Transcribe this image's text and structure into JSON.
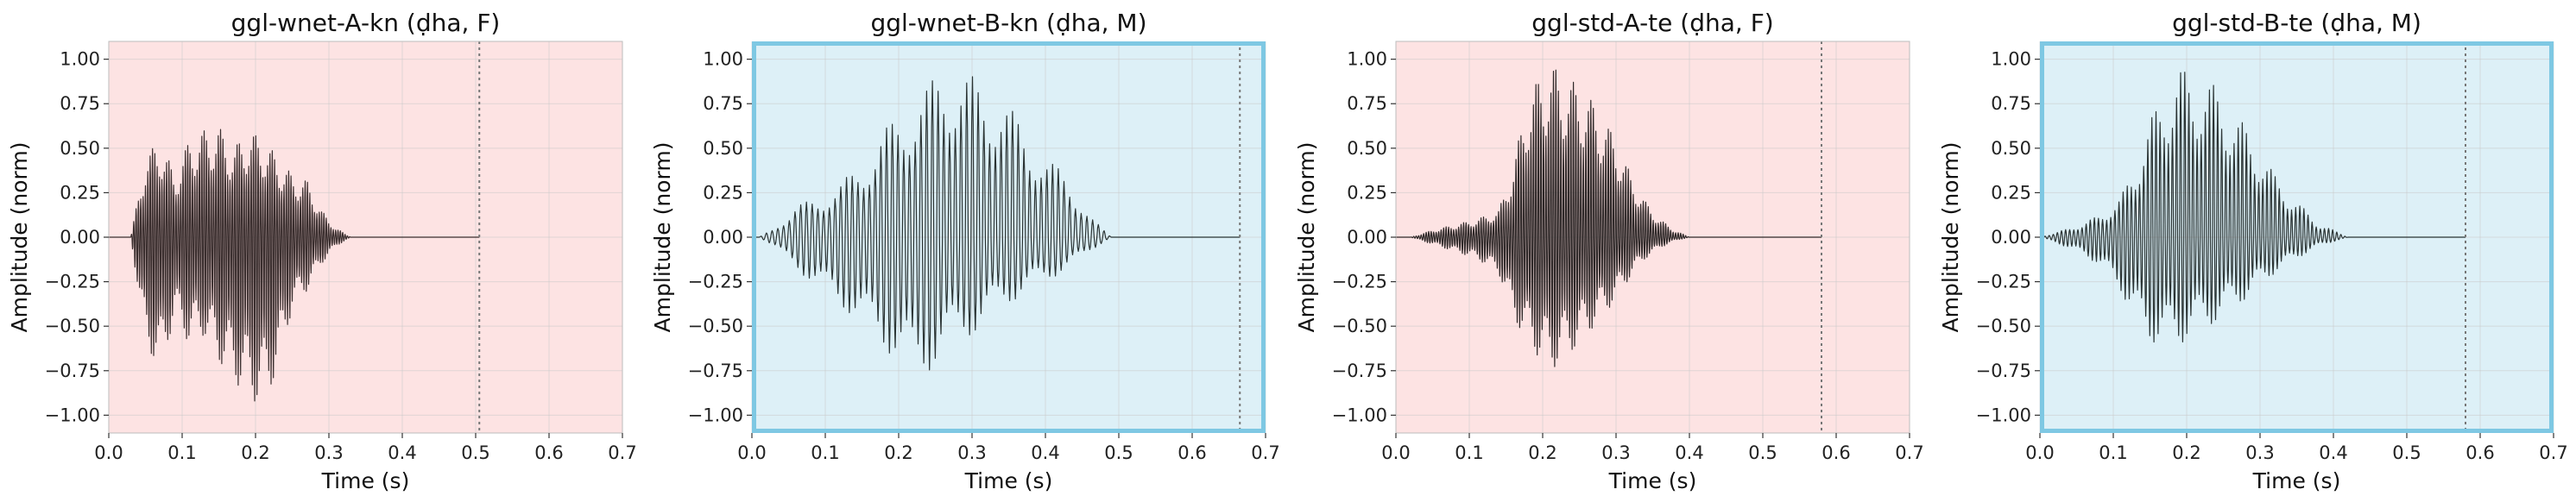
{
  "chart_data": [
    {
      "type": "line",
      "title": "ggl-wnet-A-kn (ḍha, F)",
      "xlabel": "Time (s)",
      "ylabel": "Amplitude (norm)",
      "xlim": [
        0,
        0.7
      ],
      "ylim": [
        -1.1,
        1.1
      ],
      "xticks": [
        "0.0",
        "0.1",
        "0.2",
        "0.3",
        "0.4",
        "0.5",
        "0.6",
        "0.7"
      ],
      "yticks": [
        "-1.00",
        "-0.75",
        "-0.50",
        "-0.25",
        "0.00",
        "0.25",
        "0.50",
        "0.75",
        "1.00"
      ],
      "grid": true,
      "background_color": "#fde3e3",
      "border_color": "",
      "line_color": "#3a2e2e",
      "vline_x": 0.505,
      "series": [
        {
          "signal_start": 0.03,
          "signal_end": 0.33,
          "cycle_period": 0.0032,
          "envelope": [
            [
              0.03,
              0.0
            ],
            [
              0.05,
              0.45
            ],
            [
              0.07,
              0.55
            ],
            [
              0.09,
              0.35
            ],
            [
              0.11,
              0.55
            ],
            [
              0.13,
              0.6
            ],
            [
              0.15,
              0.62
            ],
            [
              0.17,
              0.5
            ],
            [
              0.19,
              0.6
            ],
            [
              0.21,
              0.55
            ],
            [
              0.23,
              0.45
            ],
            [
              0.25,
              0.35
            ],
            [
              0.27,
              0.32
            ],
            [
              0.29,
              0.15
            ],
            [
              0.31,
              0.05
            ],
            [
              0.33,
              0.0
            ]
          ],
          "neg_envelope": [
            [
              0.03,
              0.0
            ],
            [
              0.05,
              -0.6
            ],
            [
              0.07,
              -0.75
            ],
            [
              0.09,
              -0.45
            ],
            [
              0.11,
              -0.6
            ],
            [
              0.13,
              -0.55
            ],
            [
              0.15,
              -0.7
            ],
            [
              0.17,
              -0.8
            ],
            [
              0.19,
              -0.9
            ],
            [
              0.21,
              -0.95
            ],
            [
              0.23,
              -0.75
            ],
            [
              0.25,
              -0.4
            ],
            [
              0.27,
              -0.3
            ],
            [
              0.29,
              -0.15
            ],
            [
              0.31,
              -0.05
            ],
            [
              0.33,
              0.0
            ]
          ]
        }
      ]
    },
    {
      "type": "line",
      "title": "ggl-wnet-B-kn (ḍha, M)",
      "xlabel": "Time (s)",
      "ylabel": "Amplitude (norm)",
      "xlim": [
        0,
        0.7
      ],
      "ylim": [
        -1.1,
        1.1
      ],
      "xticks": [
        "0.0",
        "0.1",
        "0.2",
        "0.3",
        "0.4",
        "0.5",
        "0.6",
        "0.7"
      ],
      "yticks": [
        "-1.00",
        "-0.75",
        "-0.50",
        "-0.25",
        "0.00",
        "0.25",
        "0.50",
        "0.75",
        "1.00"
      ],
      "grid": true,
      "background_color": "#ddf0f7",
      "border_color": "#7ec8e3",
      "line_color": "#2a3333",
      "vline_x": 0.665,
      "series": [
        {
          "signal_start": 0.01,
          "signal_end": 0.49,
          "cycle_period": 0.0078,
          "envelope": [
            [
              0.01,
              0.0
            ],
            [
              0.03,
              0.05
            ],
            [
              0.06,
              0.18
            ],
            [
              0.09,
              0.22
            ],
            [
              0.12,
              0.3
            ],
            [
              0.15,
              0.42
            ],
            [
              0.18,
              0.6
            ],
            [
              0.21,
              0.75
            ],
            [
              0.24,
              0.85
            ],
            [
              0.26,
              0.98
            ],
            [
              0.28,
              0.95
            ],
            [
              0.31,
              0.88
            ],
            [
              0.34,
              0.8
            ],
            [
              0.37,
              0.62
            ],
            [
              0.4,
              0.45
            ],
            [
              0.43,
              0.35
            ],
            [
              0.46,
              0.12
            ],
            [
              0.49,
              0.0
            ]
          ],
          "neg_envelope": [
            [
              0.01,
              0.0
            ],
            [
              0.03,
              -0.05
            ],
            [
              0.06,
              -0.18
            ],
            [
              0.09,
              -0.28
            ],
            [
              0.12,
              -0.38
            ],
            [
              0.15,
              -0.5
            ],
            [
              0.18,
              -0.62
            ],
            [
              0.21,
              -0.75
            ],
            [
              0.22,
              -0.82
            ],
            [
              0.25,
              -0.72
            ],
            [
              0.28,
              -0.6
            ],
            [
              0.31,
              -0.52
            ],
            [
              0.34,
              -0.4
            ],
            [
              0.37,
              -0.32
            ],
            [
              0.4,
              -0.25
            ],
            [
              0.43,
              -0.18
            ],
            [
              0.46,
              -0.08
            ],
            [
              0.49,
              0.0
            ]
          ]
        }
      ]
    },
    {
      "type": "line",
      "title": "ggl-std-A-te (ḍha, F)",
      "xlabel": "Time (s)",
      "ylabel": "Amplitude (norm)",
      "xlim": [
        0,
        0.7
      ],
      "ylim": [
        -1.1,
        1.1
      ],
      "xticks": [
        "0.0",
        "0.1",
        "0.2",
        "0.3",
        "0.4",
        "0.5",
        "0.6",
        "0.7"
      ],
      "yticks": [
        "-1.00",
        "-0.75",
        "-0.50",
        "-0.25",
        "0.00",
        "0.25",
        "0.50",
        "0.75",
        "1.00"
      ],
      "grid": true,
      "background_color": "#fde3e3",
      "border_color": "",
      "line_color": "#2e2828",
      "vline_x": 0.58,
      "series": [
        {
          "signal_start": 0.02,
          "signal_end": 0.4,
          "cycle_period": 0.0034,
          "envelope": [
            [
              0.02,
              0.0
            ],
            [
              0.05,
              0.04
            ],
            [
              0.08,
              0.07
            ],
            [
              0.11,
              0.1
            ],
            [
              0.14,
              0.15
            ],
            [
              0.16,
              0.4
            ],
            [
              0.18,
              0.8
            ],
            [
              0.2,
              0.92
            ],
            [
              0.21,
              0.98
            ],
            [
              0.23,
              0.9
            ],
            [
              0.25,
              0.85
            ],
            [
              0.27,
              0.75
            ],
            [
              0.3,
              0.55
            ],
            [
              0.32,
              0.35
            ],
            [
              0.34,
              0.2
            ],
            [
              0.36,
              0.1
            ],
            [
              0.38,
              0.04
            ],
            [
              0.4,
              0.0
            ]
          ],
          "neg_envelope": [
            [
              0.02,
              0.0
            ],
            [
              0.05,
              -0.04
            ],
            [
              0.08,
              -0.08
            ],
            [
              0.11,
              -0.12
            ],
            [
              0.14,
              -0.2
            ],
            [
              0.16,
              -0.45
            ],
            [
              0.18,
              -0.6
            ],
            [
              0.2,
              -0.7
            ],
            [
              0.21,
              -0.75
            ],
            [
              0.23,
              -0.68
            ],
            [
              0.25,
              -0.6
            ],
            [
              0.27,
              -0.5
            ],
            [
              0.3,
              -0.35
            ],
            [
              0.32,
              -0.22
            ],
            [
              0.34,
              -0.12
            ],
            [
              0.36,
              -0.06
            ],
            [
              0.38,
              -0.02
            ],
            [
              0.4,
              0.0
            ]
          ]
        }
      ]
    },
    {
      "type": "line",
      "title": "ggl-std-B-te (ḍha, M)",
      "xlabel": "Time (s)",
      "ylabel": "Amplitude (norm)",
      "xlim": [
        0,
        0.7
      ],
      "ylim": [
        -1.1,
        1.1
      ],
      "xticks": [
        "0.0",
        "0.1",
        "0.2",
        "0.3",
        "0.4",
        "0.5",
        "0.6",
        "0.7"
      ],
      "yticks": [
        "-1.00",
        "-0.75",
        "-0.50",
        "-0.25",
        "0.00",
        "0.25",
        "0.50",
        "0.75",
        "1.00"
      ],
      "grid": true,
      "background_color": "#ddf0f7",
      "border_color": "#7ec8e3",
      "line_color": "#2a3333",
      "vline_x": 0.58,
      "series": [
        {
          "signal_start": 0.0,
          "signal_end": 0.42,
          "cycle_period": 0.0056,
          "envelope": [
            [
              0.0,
              0.0
            ],
            [
              0.04,
              0.05
            ],
            [
              0.08,
              0.12
            ],
            [
              0.11,
              0.22
            ],
            [
              0.13,
              0.42
            ],
            [
              0.15,
              0.65
            ],
            [
              0.17,
              0.85
            ],
            [
              0.19,
              0.95
            ],
            [
              0.21,
              0.92
            ],
            [
              0.23,
              0.88
            ],
            [
              0.25,
              0.8
            ],
            [
              0.27,
              0.68
            ],
            [
              0.3,
              0.5
            ],
            [
              0.32,
              0.35
            ],
            [
              0.35,
              0.2
            ],
            [
              0.38,
              0.08
            ],
            [
              0.42,
              0.0
            ]
          ],
          "neg_envelope": [
            [
              0.0,
              0.0
            ],
            [
              0.04,
              -0.06
            ],
            [
              0.08,
              -0.15
            ],
            [
              0.11,
              -0.3
            ],
            [
              0.13,
              -0.48
            ],
            [
              0.15,
              -0.58
            ],
            [
              0.17,
              -0.62
            ],
            [
              0.19,
              -0.6
            ],
            [
              0.21,
              -0.55
            ],
            [
              0.23,
              -0.5
            ],
            [
              0.25,
              -0.45
            ],
            [
              0.27,
              -0.38
            ],
            [
              0.3,
              -0.28
            ],
            [
              0.32,
              -0.2
            ],
            [
              0.35,
              -0.12
            ],
            [
              0.38,
              -0.05
            ],
            [
              0.42,
              0.0
            ]
          ]
        }
      ]
    }
  ]
}
